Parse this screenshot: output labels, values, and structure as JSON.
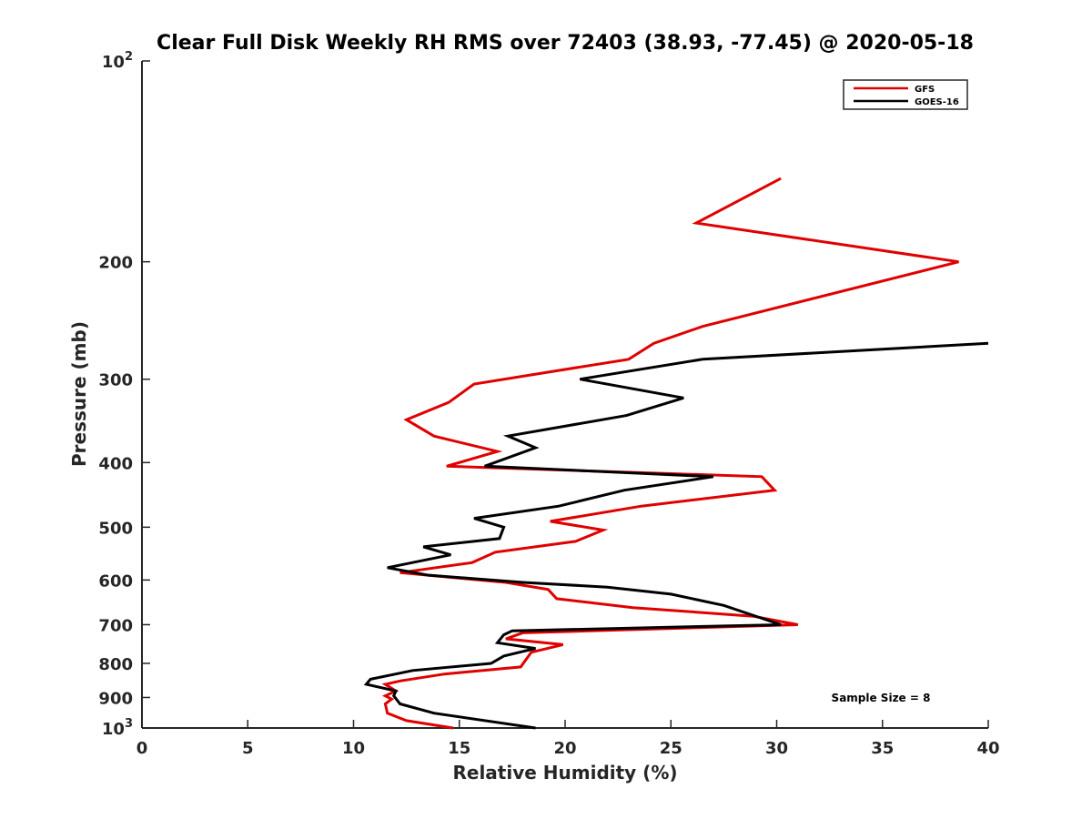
{
  "chart_data": {
    "type": "line",
    "title": "Clear Full Disk Weekly RH RMS over 72403 (38.93, -77.45) @ 2020-05-18",
    "xlabel": "Relative Humidity (%)",
    "ylabel": "Pressure (mb)",
    "xlim": [
      0,
      40
    ],
    "ylim": [
      100,
      1000
    ],
    "yscale": "log",
    "y_reversed": true,
    "grid": false,
    "legend_position": "top-right",
    "x_ticks": [
      0,
      5,
      10,
      15,
      20,
      25,
      30,
      35,
      40
    ],
    "y_ticks": [
      {
        "value": 100,
        "base": "10",
        "exp": "2"
      },
      {
        "value": 200,
        "label": "200"
      },
      {
        "value": 300,
        "label": "300"
      },
      {
        "value": 400,
        "label": "400"
      },
      {
        "value": 500,
        "label": "500"
      },
      {
        "value": 600,
        "label": "600"
      },
      {
        "value": 700,
        "label": "700"
      },
      {
        "value": 800,
        "label": "800"
      },
      {
        "value": 900,
        "label": "900"
      },
      {
        "value": 1000,
        "base": "10",
        "exp": "3"
      }
    ],
    "annotation": "Sample Size = 8",
    "series": [
      {
        "name": "GFS",
        "color": "#e00000",
        "points": [
          [
            30.2,
            150
          ],
          [
            26.2,
            175
          ],
          [
            38.6,
            200
          ],
          [
            26.5,
            250
          ],
          [
            24.2,
            265
          ],
          [
            23.0,
            280
          ],
          [
            15.7,
            305
          ],
          [
            14.5,
            325
          ],
          [
            12.5,
            345
          ],
          [
            13.8,
            365
          ],
          [
            16.8,
            385
          ],
          [
            14.4,
            405
          ],
          [
            29.3,
            420
          ],
          [
            29.9,
            440
          ],
          [
            23.6,
            465
          ],
          [
            19.3,
            490
          ],
          [
            21.8,
            505
          ],
          [
            20.5,
            525
          ],
          [
            16.7,
            545
          ],
          [
            15.6,
            565
          ],
          [
            12.2,
            585
          ],
          [
            17.2,
            605
          ],
          [
            19.2,
            620
          ],
          [
            19.6,
            640
          ],
          [
            23.2,
            660
          ],
          [
            28.9,
            680
          ],
          [
            31.0,
            700
          ],
          [
            18.0,
            720
          ],
          [
            17.2,
            735
          ],
          [
            19.9,
            750
          ],
          [
            18.4,
            770
          ],
          [
            17.9,
            810
          ],
          [
            14.3,
            830
          ],
          [
            12.2,
            850
          ],
          [
            11.5,
            860
          ],
          [
            12.0,
            880
          ],
          [
            11.5,
            895
          ],
          [
            11.8,
            905
          ],
          [
            11.5,
            920
          ],
          [
            11.6,
            950
          ],
          [
            12.5,
            975
          ],
          [
            14.7,
            1000
          ]
        ]
      },
      {
        "name": "GOES-16",
        "color": "#000000",
        "points": [
          [
            40.0,
            265
          ],
          [
            26.5,
            280
          ],
          [
            20.7,
            300
          ],
          [
            25.6,
            320
          ],
          [
            22.9,
            340
          ],
          [
            17.3,
            365
          ],
          [
            18.6,
            380
          ],
          [
            16.2,
            405
          ],
          [
            27.0,
            420
          ],
          [
            22.8,
            440
          ],
          [
            19.7,
            465
          ],
          [
            15.7,
            485
          ],
          [
            17.1,
            500
          ],
          [
            16.9,
            520
          ],
          [
            13.3,
            535
          ],
          [
            14.6,
            550
          ],
          [
            11.6,
            575
          ],
          [
            13.5,
            590
          ],
          [
            18.0,
            605
          ],
          [
            22.0,
            615
          ],
          [
            25.0,
            630
          ],
          [
            27.5,
            655
          ],
          [
            30.2,
            700
          ],
          [
            17.5,
            715
          ],
          [
            17.1,
            725
          ],
          [
            16.8,
            745
          ],
          [
            18.6,
            760
          ],
          [
            17.1,
            780
          ],
          [
            16.5,
            800
          ],
          [
            12.8,
            820
          ],
          [
            10.8,
            845
          ],
          [
            10.6,
            860
          ],
          [
            12.0,
            880
          ],
          [
            11.9,
            895
          ],
          [
            12.2,
            920
          ],
          [
            13.8,
            950
          ],
          [
            18.6,
            1000
          ]
        ]
      }
    ]
  }
}
